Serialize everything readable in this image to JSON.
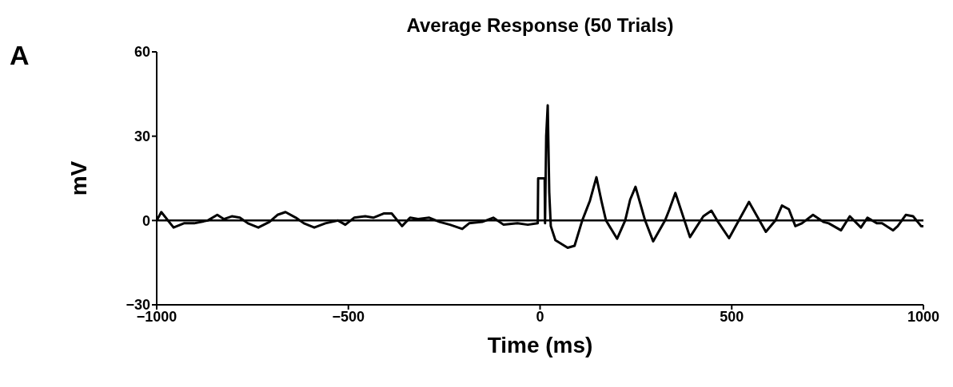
{
  "chart_data": {
    "type": "line",
    "title": "Average Response (50 Trials)",
    "xlabel": "Time (ms)",
    "ylabel": "mV",
    "annotations": [
      "A"
    ],
    "x": [
      -1000,
      -988,
      -956,
      -929,
      -902,
      -867,
      -842,
      -825,
      -804,
      -783,
      -762,
      -735,
      -706,
      -685,
      -664,
      -637,
      -616,
      -589,
      -560,
      -527,
      -508,
      -485,
      -456,
      -435,
      -408,
      -387,
      -360,
      -339,
      -318,
      -289,
      -262,
      -235,
      -203,
      -185,
      -151,
      -122,
      -95,
      -59,
      -32,
      -6,
      -5,
      12,
      13,
      16,
      20,
      24,
      28,
      40,
      72,
      90,
      110,
      130,
      147,
      160,
      172,
      201,
      222,
      235,
      249,
      274,
      295,
      326,
      337,
      353,
      391,
      426,
      447,
      462,
      493,
      545,
      589,
      614,
      631,
      649,
      666,
      683,
      712,
      739,
      753,
      785,
      808,
      837,
      854,
      879,
      892,
      921,
      933,
      954,
      973,
      994,
      1000
    ],
    "values": [
      0,
      3,
      -2.5,
      -1,
      -1,
      0,
      2,
      0.5,
      1.5,
      1,
      -1,
      -2.5,
      -0.5,
      2,
      3,
      1,
      -1,
      -2.5,
      -1,
      0,
      -1.5,
      1,
      1.5,
      1,
      2.5,
      2.5,
      -2,
      1,
      0.5,
      1,
      -0.5,
      -1.5,
      -3,
      -1,
      -0.5,
      1,
      -1.5,
      -1,
      -1.5,
      -1,
      15,
      15,
      -1,
      30,
      41,
      10,
      -2,
      -7,
      -9.7,
      -9,
      0,
      7,
      15.4,
      7,
      0,
      -6.5,
      0,
      7.4,
      12,
      0,
      -7.4,
      0,
      3.8,
      9.8,
      -5.9,
      1.5,
      3.5,
      0,
      -6.3,
      6.6,
      -4,
      0,
      5.3,
      4,
      -2,
      -1,
      2,
      -0.5,
      -1,
      -3.5,
      1.5,
      -2.5,
      1,
      -1,
      -1,
      -3.5,
      -2,
      2,
      1.5,
      -2,
      -2
    ],
    "color": "#000000",
    "xlim": [
      -1000,
      1000
    ],
    "xticks": [
      -1000,
      -500,
      0,
      500,
      1000
    ],
    "ylim": [
      -30,
      60
    ],
    "yticks": [
      -30,
      0,
      30,
      60
    ],
    "ref_lines": [
      {
        "axis": "y",
        "value": 0,
        "color": "#000000"
      }
    ]
  }
}
